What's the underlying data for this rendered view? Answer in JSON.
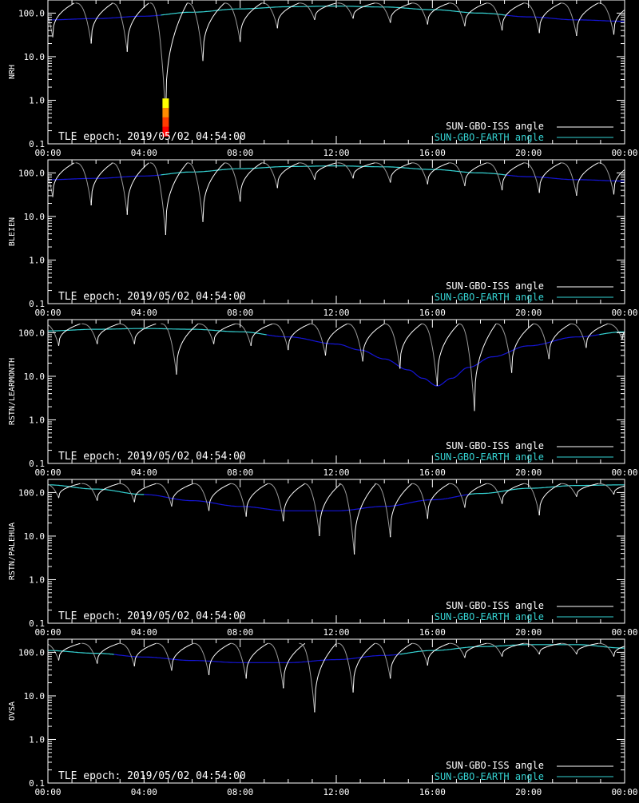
{
  "colors": {
    "background": "#000000",
    "frame": "#ffffff",
    "iss_line": "#ffffff",
    "earth_line_above": "#35d3d3",
    "earth_line_below": "#1515d8",
    "legend_iss": "#ffffff",
    "legend_earth": "#35d3d3",
    "event_colors": [
      "#ffff00",
      "#ff8c00",
      "#ff3c00",
      "#ff0000"
    ]
  },
  "chart_data": [
    {
      "type": "line",
      "ylabel": "NRH",
      "yscale": "log",
      "ylim": [
        0.1,
        200
      ],
      "yticks": [
        "0.1",
        "1.0",
        "10.0",
        "100.0"
      ],
      "xticks": [
        "00:00",
        "04:00",
        "08:00",
        "12:00",
        "16:00",
        "20:00",
        "00:00"
      ],
      "xlim_hours": [
        0,
        24
      ],
      "epoch": "TLE epoch: 2019/05/02 04:54:00",
      "legend": [
        "SUN-GBO-ISS angle",
        "SUN-GBO-EARTH angle"
      ],
      "earth_series": {
        "x": [
          0,
          2,
          4,
          6,
          8,
          10,
          12,
          14,
          16,
          18,
          20,
          22,
          24
        ],
        "y": [
          70,
          75,
          85,
          105,
          125,
          140,
          145,
          138,
          120,
          100,
          82,
          70,
          65
        ]
      },
      "iss_dips": [
        {
          "x": 0.2,
          "y": 28
        },
        {
          "x": 1.8,
          "y": 20
        },
        {
          "x": 3.3,
          "y": 13
        },
        {
          "x": 4.9,
          "y": 0.4
        },
        {
          "x": 6.45,
          "y": 8
        },
        {
          "x": 8.0,
          "y": 22
        },
        {
          "x": 9.55,
          "y": 45
        },
        {
          "x": 11.1,
          "y": 70
        },
        {
          "x": 12.7,
          "y": 75
        },
        {
          "x": 14.25,
          "y": 60
        },
        {
          "x": 15.8,
          "y": 55
        },
        {
          "x": 17.35,
          "y": 50
        },
        {
          "x": 18.9,
          "y": 40
        },
        {
          "x": 20.45,
          "y": 35
        },
        {
          "x": 22.0,
          "y": 30
        },
        {
          "x": 23.55,
          "y": 32
        }
      ],
      "iss_peak": 170,
      "event_bar": {
        "x": 4.9,
        "y_bottom": 0.15,
        "y_top": 1.1
      }
    },
    {
      "type": "line",
      "ylabel": "BLEIEN",
      "yscale": "log",
      "ylim": [
        0.1,
        200
      ],
      "yticks": [
        "0.1",
        "1.0",
        "10.0",
        "100.0"
      ],
      "xticks": [
        "00:00",
        "04:00",
        "08:00",
        "12:00",
        "16:00",
        "20:00",
        "00:00"
      ],
      "xlim_hours": [
        0,
        24
      ],
      "epoch": "TLE epoch: 2019/05/02 04:54:00",
      "legend": [
        "SUN-GBO-ISS angle",
        "SUN-GBO-EARTH angle"
      ],
      "earth_series": {
        "x": [
          0,
          2,
          4,
          6,
          8,
          10,
          12,
          14,
          16,
          18,
          20,
          22,
          24
        ],
        "y": [
          70,
          75,
          85,
          105,
          125,
          140,
          145,
          138,
          120,
          100,
          82,
          70,
          65
        ]
      },
      "iss_dips": [
        {
          "x": 0.2,
          "y": 28
        },
        {
          "x": 1.8,
          "y": 18
        },
        {
          "x": 3.3,
          "y": 11
        },
        {
          "x": 4.9,
          "y": 3.8
        },
        {
          "x": 6.45,
          "y": 7.5
        },
        {
          "x": 8.0,
          "y": 22
        },
        {
          "x": 9.55,
          "y": 45
        },
        {
          "x": 11.1,
          "y": 70
        },
        {
          "x": 12.7,
          "y": 75
        },
        {
          "x": 14.25,
          "y": 60
        },
        {
          "x": 15.8,
          "y": 55
        },
        {
          "x": 17.35,
          "y": 50
        },
        {
          "x": 18.9,
          "y": 40
        },
        {
          "x": 20.45,
          "y": 35
        },
        {
          "x": 22.0,
          "y": 30
        },
        {
          "x": 23.55,
          "y": 32
        }
      ],
      "iss_peak": 170
    },
    {
      "type": "line",
      "ylabel": "RSTN/LEARMONTH",
      "yscale": "log",
      "ylim": [
        0.1,
        200
      ],
      "yticks": [
        "0.1",
        "1.0",
        "10.0",
        "100.0"
      ],
      "xticks": [
        "00:00",
        "04:00",
        "08:00",
        "12:00",
        "16:00",
        "20:00",
        "00:00"
      ],
      "xlim_hours": [
        0,
        24
      ],
      "epoch": "TLE epoch: 2019/05/02 04:54:00",
      "legend": [
        "SUN-GBO-ISS angle",
        "SUN-GBO-EARTH angle"
      ],
      "earth_series": {
        "x": [
          0,
          2,
          4,
          6,
          8,
          10,
          12,
          13,
          14,
          15,
          15.6,
          16.2,
          16.8,
          17.5,
          18.5,
          20,
          22,
          24
        ],
        "y": [
          110,
          120,
          125,
          120,
          105,
          80,
          55,
          40,
          25,
          14,
          9,
          6,
          9,
          16,
          28,
          50,
          80,
          105
        ]
      },
      "iss_dips": [
        {
          "x": 0.45,
          "y": 50
        },
        {
          "x": 2.05,
          "y": 55
        },
        {
          "x": 3.6,
          "y": 55
        },
        {
          "x": 5.35,
          "y": 11
        },
        {
          "x": 6.9,
          "y": 55
        },
        {
          "x": 8.45,
          "y": 50
        },
        {
          "x": 10.0,
          "y": 40
        },
        {
          "x": 11.55,
          "y": 30
        },
        {
          "x": 13.1,
          "y": 22
        },
        {
          "x": 14.65,
          "y": 15
        },
        {
          "x": 16.2,
          "y": 6
        },
        {
          "x": 17.75,
          "y": 1.6
        },
        {
          "x": 19.3,
          "y": 12
        },
        {
          "x": 20.85,
          "y": 25
        },
        {
          "x": 22.4,
          "y": 45
        },
        {
          "x": 23.9,
          "y": 70
        }
      ],
      "iss_peak": 160
    },
    {
      "type": "line",
      "ylabel": "RSTN/PALEHUA",
      "yscale": "log",
      "ylim": [
        0.1,
        200
      ],
      "yticks": [
        "0.1",
        "1.0",
        "10.0",
        "100.0"
      ],
      "xticks": [
        "00:00",
        "04:00",
        "08:00",
        "12:00",
        "16:00",
        "20:00",
        "00:00"
      ],
      "xlim_hours": [
        0,
        24
      ],
      "epoch": "TLE epoch: 2019/05/02 04:54:00",
      "legend": [
        "SUN-GBO-ISS angle",
        "SUN-GBO-EARTH angle"
      ],
      "earth_series": {
        "x": [
          0,
          2,
          4,
          6,
          8,
          10,
          12,
          14,
          16,
          18,
          20,
          22,
          24
        ],
        "y": [
          150,
          120,
          90,
          65,
          48,
          38,
          38,
          48,
          68,
          95,
          125,
          145,
          150
        ]
      },
      "iss_dips": [
        {
          "x": 0.45,
          "y": 75
        },
        {
          "x": 2.05,
          "y": 65
        },
        {
          "x": 3.6,
          "y": 60
        },
        {
          "x": 5.15,
          "y": 48
        },
        {
          "x": 6.7,
          "y": 38
        },
        {
          "x": 8.25,
          "y": 28
        },
        {
          "x": 9.8,
          "y": 22
        },
        {
          "x": 11.3,
          "y": 10
        },
        {
          "x": 12.75,
          "y": 3.8
        },
        {
          "x": 14.25,
          "y": 9.5
        },
        {
          "x": 15.8,
          "y": 25
        },
        {
          "x": 17.35,
          "y": 45
        },
        {
          "x": 18.9,
          "y": 55
        },
        {
          "x": 20.45,
          "y": 30
        },
        {
          "x": 22.0,
          "y": 80
        },
        {
          "x": 23.55,
          "y": 90
        }
      ],
      "iss_peak": 160
    },
    {
      "type": "line",
      "ylabel": "OVSA",
      "yscale": "log",
      "ylim": [
        0.1,
        200
      ],
      "yticks": [
        "0.1",
        "1.0",
        "10.0",
        "100.0"
      ],
      "xticks": [
        "00:00",
        "04:00",
        "08:00",
        "12:00",
        "16:00",
        "20:00",
        "00:00"
      ],
      "xlim_hours": [
        0,
        24
      ],
      "epoch": "TLE epoch: 2019/05/02 04:54:00",
      "legend": [
        "SUN-GBO-ISS angle",
        "SUN-GBO-EARTH angle"
      ],
      "earth_series": {
        "x": [
          0,
          2,
          4,
          6,
          8,
          10,
          12,
          14,
          16,
          18,
          20,
          22,
          24
        ],
        "y": [
          110,
          95,
          78,
          65,
          58,
          58,
          68,
          85,
          110,
          135,
          150,
          150,
          125
        ]
      },
      "iss_dips": [
        {
          "x": 0.45,
          "y": 65
        },
        {
          "x": 2.05,
          "y": 55
        },
        {
          "x": 3.6,
          "y": 48
        },
        {
          "x": 5.15,
          "y": 38
        },
        {
          "x": 6.7,
          "y": 30
        },
        {
          "x": 8.25,
          "y": 25
        },
        {
          "x": 9.8,
          "y": 15
        },
        {
          "x": 11.1,
          "y": 4.2
        },
        {
          "x": 12.7,
          "y": 12
        },
        {
          "x": 14.25,
          "y": 25
        },
        {
          "x": 15.8,
          "y": 50
        },
        {
          "x": 17.35,
          "y": 75
        },
        {
          "x": 18.9,
          "y": 80
        },
        {
          "x": 20.45,
          "y": 90
        },
        {
          "x": 22.0,
          "y": 90
        },
        {
          "x": 23.55,
          "y": 80
        }
      ],
      "iss_peak": 160
    }
  ]
}
